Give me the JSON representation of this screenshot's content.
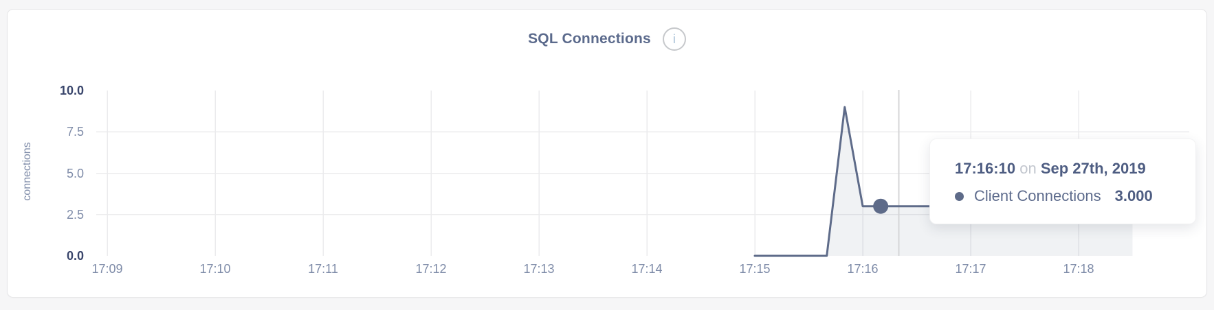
{
  "page_background": "#f6f6f7",
  "card": {
    "title": "SQL Connections",
    "info_icon_glyph": "i"
  },
  "tooltip": {
    "time": "17:16:10",
    "connector": "on",
    "date": "Sep 27th, 2019",
    "series_label": "Client Connections",
    "value": "3.000"
  },
  "chart_data": {
    "type": "area",
    "title": "SQL Connections",
    "xlabel": "",
    "ylabel": "connections",
    "ylim": [
      0,
      10
    ],
    "grid": true,
    "legend_position": "none",
    "yticks": [
      {
        "label": "10.0",
        "value": 10,
        "strong": true
      },
      {
        "label": "7.5",
        "value": 7.5,
        "strong": false
      },
      {
        "label": "5.0",
        "value": 5,
        "strong": false
      },
      {
        "label": "2.5",
        "value": 2.5,
        "strong": false
      },
      {
        "label": "0.0",
        "value": 0,
        "strong": true
      }
    ],
    "xticks": [
      "17:09",
      "17:10",
      "17:11",
      "17:12",
      "17:13",
      "17:14",
      "17:15",
      "17:16",
      "17:17",
      "17:18"
    ],
    "series": [
      {
        "name": "Client Connections",
        "color": "#5e6b89",
        "fill": "rgba(94,107,137,0.09)",
        "points": [
          [
            "17:15:00",
            0
          ],
          [
            "17:15:10",
            0
          ],
          [
            "17:15:20",
            0
          ],
          [
            "17:15:30",
            0
          ],
          [
            "17:15:40",
            0
          ],
          [
            "17:15:50",
            9
          ],
          [
            "17:16:00",
            3
          ],
          [
            "17:16:10",
            3
          ],
          [
            "17:16:20",
            3
          ],
          [
            "17:16:30",
            3
          ],
          [
            "17:16:40",
            3
          ],
          [
            "17:16:50",
            3
          ],
          [
            "17:17:00",
            3
          ],
          [
            "17:17:10",
            3
          ],
          [
            "17:17:20",
            3
          ],
          [
            "17:17:30",
            3
          ],
          [
            "17:17:40",
            3
          ],
          [
            "17:17:50",
            3
          ],
          [
            "17:18:00",
            3
          ],
          [
            "17:18:10",
            3
          ],
          [
            "17:18:20",
            3
          ],
          [
            "17:18:30",
            3
          ]
        ]
      }
    ],
    "hover": {
      "point_time": "17:16:10",
      "point_value": 3,
      "crosshair_time": "17:16:20"
    },
    "colors": {
      "line": "#5e6b89",
      "grid": "#ebebed",
      "crosshair": "#d5d5d7",
      "tick": "#7e8ba8",
      "tick_strong": "#39456b",
      "title": "#5b6a8c"
    }
  }
}
